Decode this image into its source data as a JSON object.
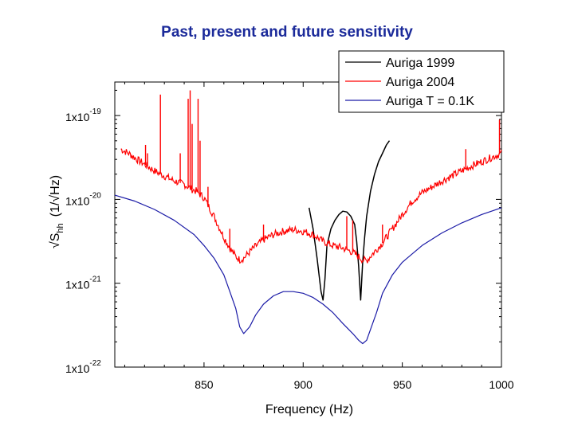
{
  "chart_data": {
    "type": "line",
    "title": "Past, present and future sensitivity",
    "xlabel": "Frequency (Hz)",
    "ylabel": "√Shh (1/√Hz)",
    "ylabel_parts": {
      "root": "√",
      "S": "S",
      "sub": "hh",
      "unit": "(1/√Hz)"
    },
    "xlim": [
      805,
      1000
    ],
    "ylim_log10": [
      -22,
      -18.6
    ],
    "yscale": "log",
    "x_ticks": [
      850,
      900,
      950,
      1000
    ],
    "x_tick_labels": [
      "850",
      "900",
      "950",
      "1000"
    ],
    "y_ticks": [
      {
        "exp": -22,
        "mantissa": "1x10",
        "power": "-22"
      },
      {
        "exp": -21,
        "mantissa": "1x10",
        "power": "-21"
      },
      {
        "exp": -20,
        "mantissa": "1x10",
        "power": "-20"
      },
      {
        "exp": -19,
        "mantissa": "1x10",
        "power": "-19"
      }
    ],
    "legend_position": "top-right",
    "series": [
      {
        "name": "Auriga 1999",
        "color": "#000000",
        "x": [
          903,
          905,
          907,
          909,
          910,
          911,
          912,
          914,
          916,
          918,
          920,
          922,
          924,
          926,
          927,
          928,
          929,
          930,
          931,
          932,
          934,
          936,
          938,
          940,
          942,
          943.5
        ],
        "y": [
          -20.1,
          -20.35,
          -20.7,
          -21.1,
          -21.2,
          -20.95,
          -20.55,
          -20.35,
          -20.25,
          -20.18,
          -20.14,
          -20.15,
          -20.2,
          -20.3,
          -20.5,
          -20.8,
          -21.2,
          -20.75,
          -20.45,
          -20.2,
          -19.9,
          -19.7,
          -19.55,
          -19.45,
          -19.35,
          -19.3
        ]
      },
      {
        "name": "Auriga 2004",
        "color": "#ff0000",
        "x": [
          808,
          812,
          816,
          820,
          825,
          830,
          835,
          840,
          842,
          844,
          846,
          850,
          855,
          860,
          863,
          866,
          868,
          870,
          875,
          880,
          885,
          890,
          895,
          900,
          905,
          910,
          915,
          920,
          925,
          930,
          932,
          935,
          940,
          945,
          950,
          955,
          960,
          965,
          970,
          975,
          980,
          985,
          990,
          995,
          1000
        ],
        "y": [
          -19.4,
          -19.45,
          -19.52,
          -19.58,
          -19.66,
          -19.72,
          -19.78,
          -19.82,
          -19.85,
          -19.88,
          -19.9,
          -19.98,
          -20.2,
          -20.45,
          -20.58,
          -20.68,
          -20.72,
          -20.7,
          -20.58,
          -20.48,
          -20.42,
          -20.38,
          -20.36,
          -20.38,
          -20.42,
          -20.5,
          -20.55,
          -20.58,
          -20.63,
          -20.72,
          -20.73,
          -20.65,
          -20.52,
          -20.35,
          -20.18,
          -20.02,
          -19.92,
          -19.85,
          -19.78,
          -19.72,
          -19.66,
          -19.6,
          -19.55,
          -19.5,
          -19.45
        ],
        "spikes": [
          {
            "x": 820.5,
            "y": -19.35
          },
          {
            "x": 821.5,
            "y": -19.45
          },
          {
            "x": 828,
            "y": -18.75
          },
          {
            "x": 838,
            "y": -19.45
          },
          {
            "x": 842,
            "y": -18.8
          },
          {
            "x": 843,
            "y": -18.7
          },
          {
            "x": 844,
            "y": -19.1
          },
          {
            "x": 847,
            "y": -18.8
          },
          {
            "x": 848,
            "y": -19.3
          },
          {
            "x": 852,
            "y": -19.85
          },
          {
            "x": 863,
            "y": -20.35
          },
          {
            "x": 880,
            "y": -20.3
          },
          {
            "x": 922,
            "y": -20.2
          },
          {
            "x": 925,
            "y": -20.25
          },
          {
            "x": 940,
            "y": -20.3
          },
          {
            "x": 982,
            "y": -19.4
          },
          {
            "x": 999,
            "y": -19.05
          }
        ]
      },
      {
        "name": "Auriga T = 0.1K",
        "color": "#1a1aa6",
        "x": [
          805,
          815,
          825,
          835,
          845,
          850,
          855,
          860,
          863,
          866,
          868,
          870,
          873,
          876,
          880,
          885,
          890,
          895,
          900,
          905,
          910,
          915,
          920,
          925,
          928,
          930,
          932,
          934,
          937,
          940,
          945,
          950,
          960,
          970,
          980,
          990,
          1000
        ],
        "y": [
          -19.95,
          -20.02,
          -20.12,
          -20.25,
          -20.42,
          -20.55,
          -20.7,
          -20.9,
          -21.1,
          -21.3,
          -21.52,
          -21.6,
          -21.52,
          -21.38,
          -21.25,
          -21.15,
          -21.1,
          -21.1,
          -21.12,
          -21.17,
          -21.25,
          -21.35,
          -21.48,
          -21.6,
          -21.68,
          -21.72,
          -21.68,
          -21.55,
          -21.35,
          -21.12,
          -20.9,
          -20.75,
          -20.55,
          -20.4,
          -20.28,
          -20.18,
          -20.1
        ]
      }
    ]
  }
}
